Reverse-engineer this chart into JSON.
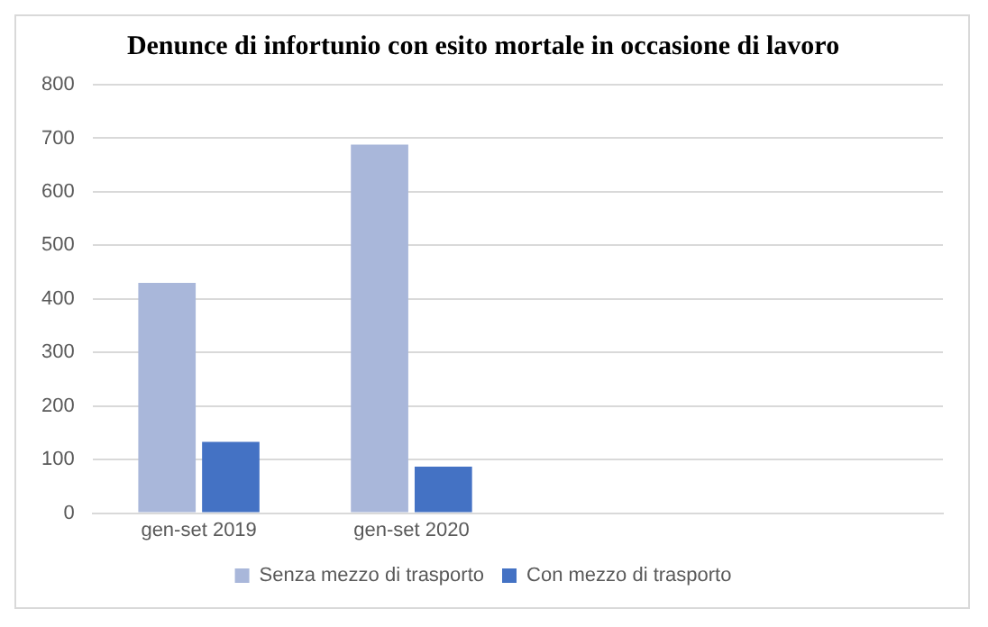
{
  "chart_data": {
    "type": "bar",
    "title": "Denunce di infortunio con esito mortale in occasione di lavoro",
    "categories": [
      "gen-set 2019",
      "gen-set 2020",
      null,
      null
    ],
    "series": [
      {
        "name": "Senza mezzo di trasporto",
        "color": "#a9b7da",
        "values": [
          430,
          688,
          null,
          null
        ]
      },
      {
        "name": "Con mezzo di trasporto",
        "color": "#4472c4",
        "values": [
          133,
          87,
          null,
          null
        ]
      }
    ],
    "ylim": [
      0,
      800
    ],
    "yticks": [
      0,
      100,
      200,
      300,
      400,
      500,
      600,
      700,
      800
    ],
    "grid": "y",
    "legend": "bottom"
  }
}
